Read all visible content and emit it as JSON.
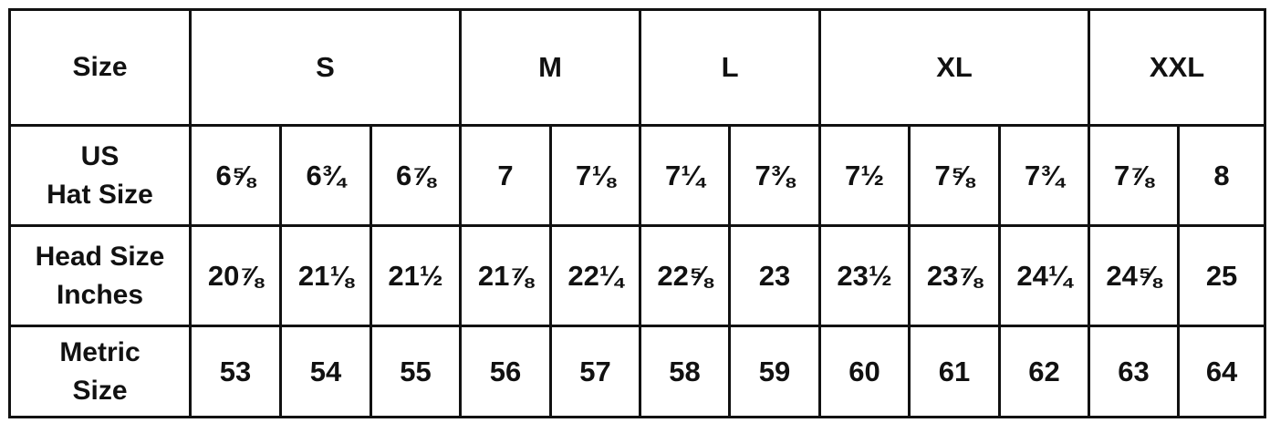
{
  "header": {
    "label": "Size",
    "groups": [
      {
        "label": "S",
        "span": 3
      },
      {
        "label": "M",
        "span": 2
      },
      {
        "label": "L",
        "span": 2
      },
      {
        "label": "XL",
        "span": 3
      },
      {
        "label": "XXL",
        "span": 2
      }
    ]
  },
  "rows": [
    {
      "label": "US\nHat Size",
      "values": [
        "6⅝",
        "6¾",
        "6⅞",
        "7",
        "7⅛",
        "7¼",
        "7⅜",
        "7½",
        "7⅝",
        "7¾",
        "7⅞",
        "8"
      ]
    },
    {
      "label": "Head Size\nInches",
      "values": [
        "20⅞",
        "21⅛",
        "21½",
        "21⅞",
        "22¼",
        "22⅝",
        "23",
        "23½",
        "23⅞",
        "24¼",
        "24⅝",
        "25"
      ]
    },
    {
      "label": "Metric\nSize",
      "values": [
        "53",
        "54",
        "55",
        "56",
        "57",
        "58",
        "59",
        "60",
        "61",
        "62",
        "63",
        "64"
      ]
    }
  ]
}
